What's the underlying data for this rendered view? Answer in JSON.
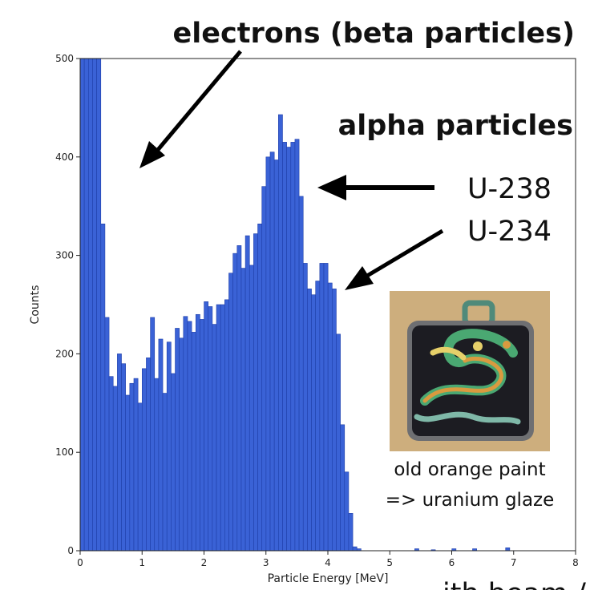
{
  "chart_data": {
    "type": "bar",
    "xlabel": "Particle Energy [MeV]",
    "ylabel": "Counts",
    "xlim": [
      0,
      8
    ],
    "ylim": [
      0,
      500
    ],
    "xticks": [
      "0",
      "1",
      "2",
      "3",
      "4",
      "5",
      "6",
      "7",
      "8"
    ],
    "yticks": [
      "0",
      "100",
      "200",
      "300",
      "400",
      "500"
    ],
    "bin_width": 0.0667,
    "bin_start": 0,
    "bar_color": "#3a62d6",
    "bar_edge_color": "#1f3fa8",
    "values": [
      500,
      500,
      500,
      500,
      500,
      332,
      237,
      177,
      167,
      200,
      190,
      158,
      170,
      175,
      150,
      185,
      196,
      237,
      175,
      215,
      160,
      212,
      180,
      226,
      216,
      238,
      233,
      222,
      240,
      235,
      253,
      248,
      230,
      250,
      250,
      255,
      282,
      302,
      310,
      287,
      320,
      290,
      322,
      332,
      370,
      400,
      405,
      397,
      443,
      415,
      410,
      415,
      418,
      360,
      292,
      266,
      260,
      274,
      292,
      292,
      272,
      266,
      220,
      128,
      80,
      38,
      4,
      2,
      0,
      0,
      0,
      0,
      0,
      0,
      0,
      0,
      0,
      0,
      0,
      0,
      0,
      2,
      0,
      0,
      0,
      1,
      0,
      0,
      0,
      0,
      2,
      0,
      0,
      0,
      0,
      2,
      0,
      0,
      0,
      0,
      0,
      0,
      0,
      3,
      0,
      0,
      0,
      0,
      0,
      0,
      0,
      0,
      0,
      0,
      0,
      0,
      0,
      0,
      0,
      0
    ]
  },
  "annotations": {
    "electrons": "electrons (beta particles)",
    "alpha": "alpha particles",
    "u238": "U-238",
    "u234": "U-234",
    "caption_line1": "old orange paint",
    "caption_line2": "=> uranium glaze",
    "cut_text": "ith beam /"
  },
  "photo": {
    "subject": "dragon-pendant-photo",
    "colors": {
      "background": "#c8a874",
      "frame": "#1c1c22",
      "dragon_green": "#4aa872",
      "dragon_orange": "#d99a3f",
      "dragon_yellow": "#e6d06a",
      "loop": "#4f8a7a"
    }
  }
}
